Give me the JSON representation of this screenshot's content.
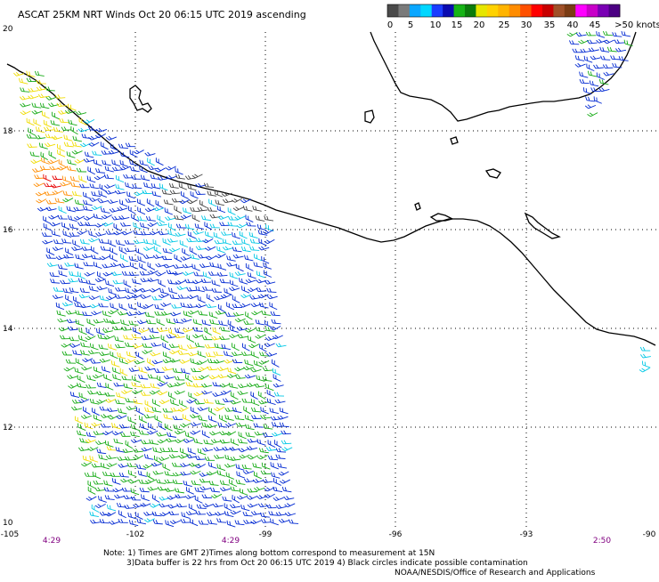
{
  "title": "ASCAT 25KM NRT Winds Oct 20 06:15 UTC 2019 ascending",
  "legend": {
    "tick_labels": [
      "0",
      "5",
      "10",
      "15",
      "20",
      "25",
      "30",
      "35",
      "40",
      "45",
      ">50 knots"
    ],
    "swatch_colors": [
      "#4a4a4a",
      "#7a7a7a",
      "#0aa7ff",
      "#00d7ff",
      "#1a3dff",
      "#0a0ab0",
      "#16b416",
      "#0b7b0b",
      "#e6e600",
      "#ffd200",
      "#ffb400",
      "#ff8c00",
      "#ff5000",
      "#ff0000",
      "#c80000",
      "#a05028",
      "#7a3c14",
      "#ff00ff",
      "#c800c8",
      "#7a00b4",
      "#4b0082"
    ]
  },
  "lat_labels": [
    "20",
    "18",
    "16",
    "14",
    "12",
    "10"
  ],
  "lon_labels": [
    "-105",
    "-102",
    "-99",
    "-96",
    "-93",
    "-90"
  ],
  "time_labels": [
    "4:29",
    "4:29",
    "2:50"
  ],
  "notes": [
    "Note: 1) Times are GMT 2)Times along bottom correspond to measurement at 15N",
    "3)Data buffer is 22 hrs from Oct 20 06:15 UTC 2019 4) Black circles indicate possible contamination",
    "NOAA/NESDIS/Office of Research and Applications"
  ],
  "colors": {
    "grid": "#000000",
    "coastline": "#000000",
    "time_label": "#800080",
    "wind_calm": "#404040",
    "wind_light": "#00c8e6",
    "wind_moderate": "#0028d2",
    "wind_fresh": "#14aa14",
    "wind_strong": "#f0dc00",
    "wind_gale": "#ff8c00",
    "wind_storm": "#e60000"
  },
  "icons": [
    "wind-barb-icon"
  ]
}
